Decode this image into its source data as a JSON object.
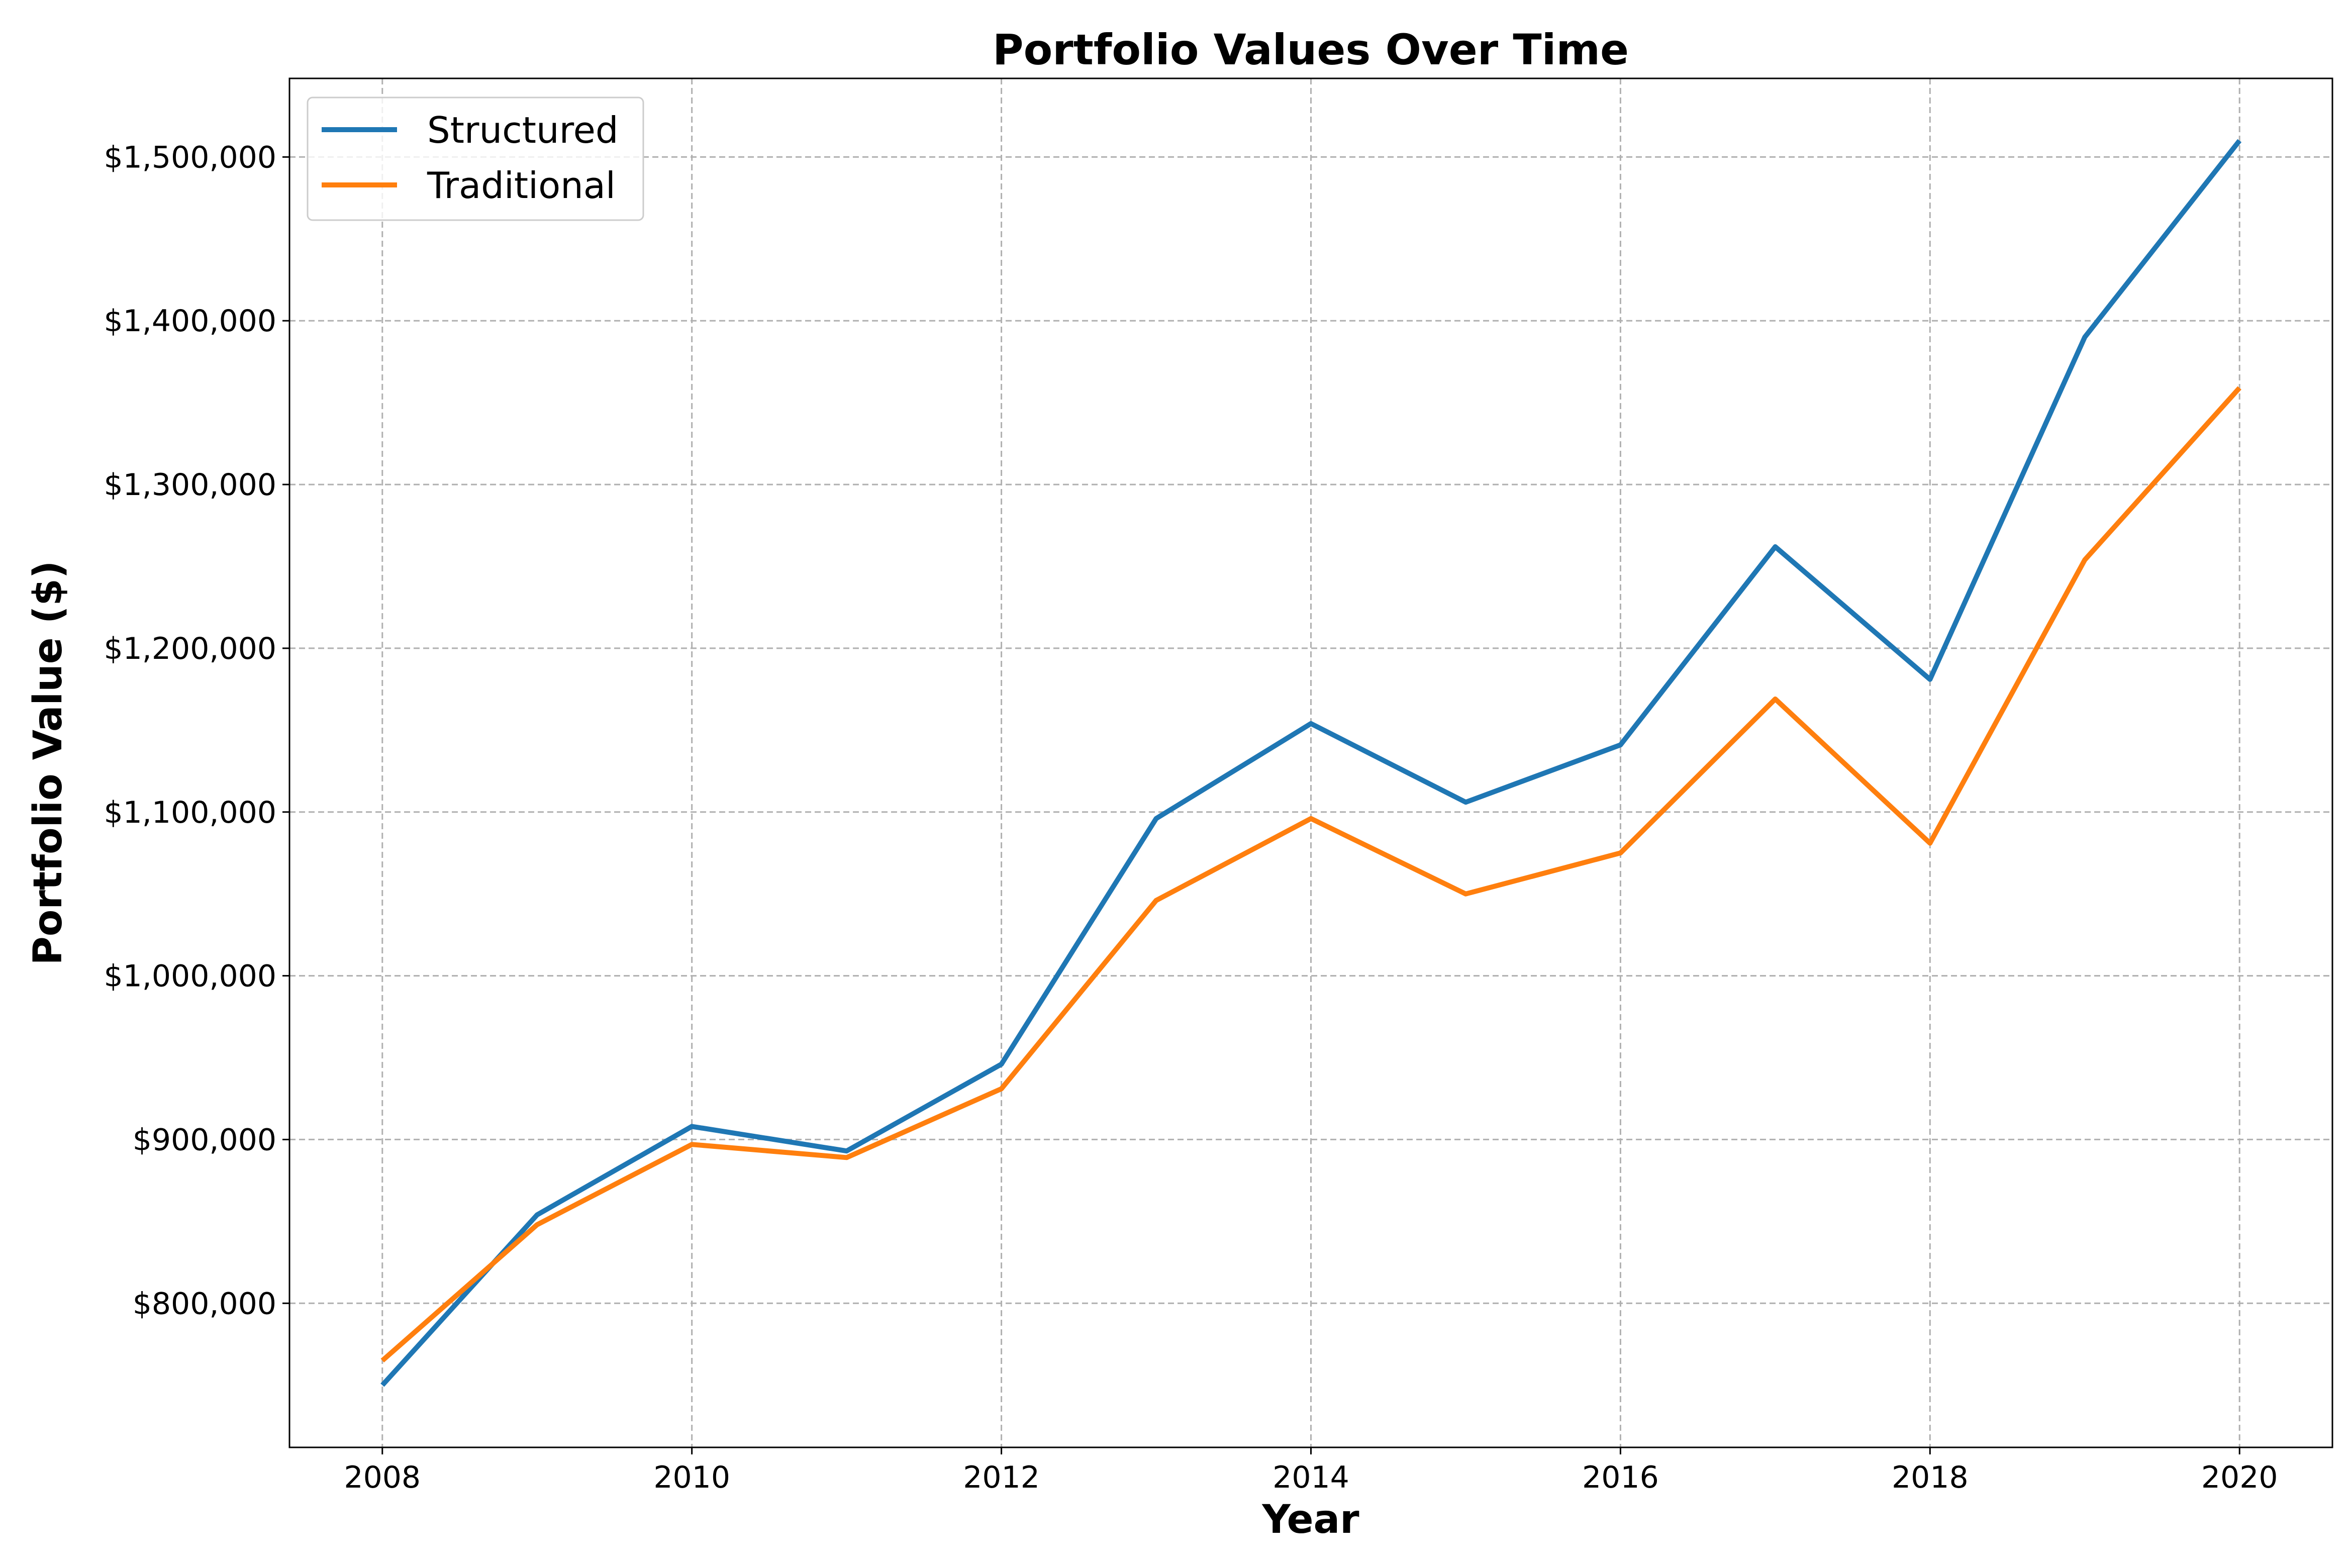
{
  "chart_data": {
    "type": "line",
    "title": "Portfolio Values Over Time",
    "xlabel": "Year",
    "ylabel": "Portfolio Value ($)",
    "x": [
      2008,
      2009,
      2010,
      2011,
      2012,
      2013,
      2014,
      2015,
      2016,
      2017,
      2018,
      2019,
      2020
    ],
    "xlim": [
      2007.4,
      2020.6
    ],
    "ylim": [
      712000,
      1548000
    ],
    "xticks": [
      2008,
      2010,
      2012,
      2014,
      2016,
      2018,
      2020
    ],
    "xtick_labels": [
      "2008",
      "2010",
      "2012",
      "2014",
      "2016",
      "2018",
      "2020"
    ],
    "yticks": [
      800000,
      900000,
      1000000,
      1100000,
      1200000,
      1300000,
      1400000,
      1500000
    ],
    "ytick_labels": [
      "$800,000",
      "$900,000",
      "$1,000,000",
      "$1,100,000",
      "$1,200,000",
      "$1,300,000",
      "$1,400,000",
      "$1,500,000"
    ],
    "grid": true,
    "legend_position": "top-left",
    "series": [
      {
        "name": "Structured",
        "color": "#1f77b4",
        "values": [
          750000,
          854000,
          908000,
          893000,
          946000,
          1096000,
          1154000,
          1106000,
          1141000,
          1262000,
          1181000,
          1390000,
          1510000
        ]
      },
      {
        "name": "Traditional",
        "color": "#ff7f0e",
        "values": [
          765000,
          848000,
          897000,
          889000,
          931000,
          1046000,
          1096000,
          1050000,
          1075000,
          1169000,
          1081000,
          1254000,
          1359000
        ]
      }
    ]
  }
}
